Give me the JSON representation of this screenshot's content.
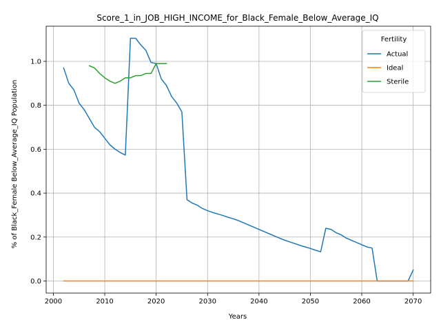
{
  "chart_data": {
    "type": "line",
    "title": "Score_1_in_JOB_HIGH_INCOME_for_Black_Female_Below_Average_IQ",
    "xlabel": "Years",
    "ylabel": "% of Black_Female Below_Average_IQ Population",
    "xlim": [
      1998.6,
      2073.4
    ],
    "ylim": [
      -0.055,
      1.16
    ],
    "xticks": [
      2000,
      2010,
      2020,
      2030,
      2040,
      2050,
      2060,
      2070
    ],
    "yticks": [
      0.0,
      0.2,
      0.4,
      0.6,
      0.8,
      1.0
    ],
    "ytick_labels": [
      "0.0",
      "0.2",
      "0.4",
      "0.6",
      "0.8",
      "1.0"
    ],
    "grid": true,
    "legend": {
      "title": "Fertility",
      "placement": "top-right"
    },
    "series": [
      {
        "name": "Actual",
        "color": "#1f77b4",
        "x": [
          2002,
          2003,
          2004,
          2005,
          2006,
          2007,
          2008,
          2009,
          2010,
          2011,
          2012,
          2013,
          2014,
          2015,
          2016,
          2017,
          2018,
          2019,
          2020,
          2021,
          2022,
          2023,
          2024,
          2025,
          2026,
          2027,
          2028,
          2029,
          2030,
          2031,
          2032,
          2033,
          2034,
          2035,
          2036,
          2037,
          2038,
          2039,
          2040,
          2041,
          2042,
          2043,
          2044,
          2045,
          2046,
          2047,
          2048,
          2049,
          2050,
          2051,
          2052,
          2053,
          2054,
          2055,
          2056,
          2057,
          2058,
          2059,
          2060,
          2061,
          2062,
          2063,
          2064,
          2065,
          2066,
          2067,
          2068,
          2069,
          2070
        ],
        "values": [
          0.97,
          0.9,
          0.87,
          0.81,
          0.78,
          0.74,
          0.7,
          0.68,
          0.65,
          0.62,
          0.6,
          0.585,
          0.573,
          1.105,
          1.105,
          1.075,
          1.05,
          0.995,
          0.99,
          0.92,
          0.89,
          0.84,
          0.81,
          0.77,
          0.37,
          0.355,
          0.345,
          0.33,
          0.32,
          0.312,
          0.305,
          0.298,
          0.29,
          0.283,
          0.275,
          0.265,
          0.255,
          0.245,
          0.235,
          0.225,
          0.215,
          0.205,
          0.195,
          0.186,
          0.178,
          0.17,
          0.162,
          0.155,
          0.148,
          0.14,
          0.133,
          0.24,
          0.235,
          0.22,
          0.21,
          0.195,
          0.185,
          0.175,
          0.165,
          0.155,
          0.15,
          0.0,
          0.0,
          0.0,
          0.0,
          0.0,
          0.0,
          0.0,
          0.05
        ]
      },
      {
        "name": "Ideal",
        "color": "#ff7f0e",
        "x": [
          2002,
          2070
        ],
        "values": [
          0.0,
          0.0
        ]
      },
      {
        "name": "Sterile",
        "color": "#2ca02c",
        "x": [
          2007,
          2008,
          2009,
          2010,
          2011,
          2012,
          2013,
          2014,
          2015,
          2016,
          2017,
          2018,
          2019,
          2020,
          2021,
          2022
        ],
        "values": [
          0.98,
          0.97,
          0.945,
          0.925,
          0.91,
          0.9,
          0.91,
          0.925,
          0.925,
          0.935,
          0.935,
          0.945,
          0.945,
          0.99,
          0.99,
          0.99
        ]
      }
    ]
  }
}
